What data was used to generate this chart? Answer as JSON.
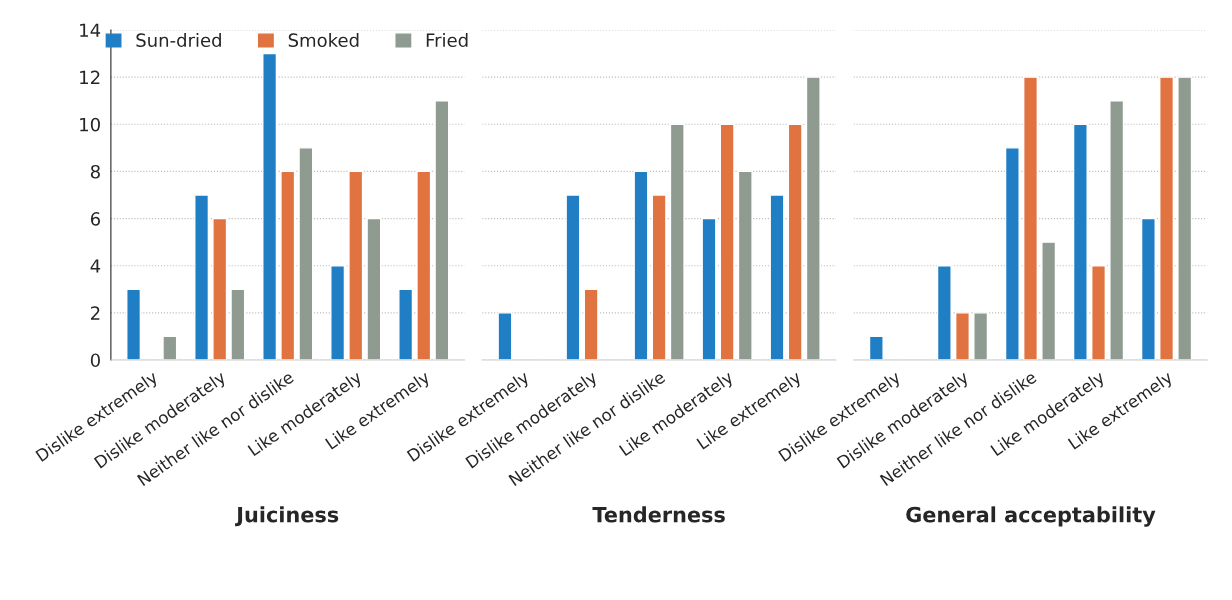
{
  "chart_data": [
    {
      "type": "bar",
      "xlabel": "Juiciness",
      "categories": [
        "Dislike extremely",
        "Dislike moderately",
        "Neither like nor dislike",
        "Like moderately",
        "Like extremely"
      ],
      "ylim": [
        0,
        14
      ],
      "yticks": [
        0,
        2,
        4,
        6,
        8,
        10,
        12,
        14
      ],
      "grid": "y",
      "legend": "top",
      "series": [
        {
          "name": "Sun-dried",
          "color": "#1f7ec4",
          "values": [
            3,
            7,
            13,
            4,
            3
          ]
        },
        {
          "name": "Smoked",
          "color": "#e0733f",
          "values": [
            null,
            6,
            8,
            8,
            8
          ]
        },
        {
          "name": "Fried",
          "color": "#8f9a90",
          "values": [
            1,
            3,
            9,
            6,
            11
          ]
        }
      ]
    },
    {
      "type": "bar",
      "xlabel": "Tenderness",
      "categories": [
        "Dislike extremely",
        "Dislike moderately",
        "Neither like nor dislike",
        "Like moderately",
        "Like extremely"
      ],
      "ylim": [
        0,
        14
      ],
      "yticks": [
        0,
        2,
        4,
        6,
        8,
        10,
        12,
        14
      ],
      "grid": "y",
      "tick_labels": "x",
      "series": [
        {
          "color": "#1f7ec4",
          "values": [
            2,
            7,
            8,
            6,
            7
          ]
        },
        {
          "color": "#e0733f",
          "values": [
            null,
            3,
            7,
            10,
            10
          ]
        },
        {
          "color": "#8f9a90",
          "values": [
            null,
            null,
            10,
            8,
            12
          ]
        }
      ]
    },
    {
      "type": "bar",
      "xlabel": "General acceptability",
      "categories": [
        "Dislike extremely",
        "Dislike moderately",
        "Neither like nor dislike",
        "Like moderately",
        "Like extremely"
      ],
      "ylim": [
        0,
        14
      ],
      "yticks": [
        0,
        2,
        4,
        6,
        8,
        10,
        12,
        14
      ],
      "grid": "y",
      "tick_labels": "x",
      "series": [
        {
          "color": "#1f7ec4",
          "values": [
            1,
            4,
            9,
            10,
            6
          ]
        },
        {
          "color": "#e0733f",
          "values": [
            null,
            2,
            12,
            4,
            12
          ]
        },
        {
          "color": "#8f9a90",
          "values": [
            null,
            2,
            5,
            11,
            12
          ]
        }
      ]
    }
  ]
}
